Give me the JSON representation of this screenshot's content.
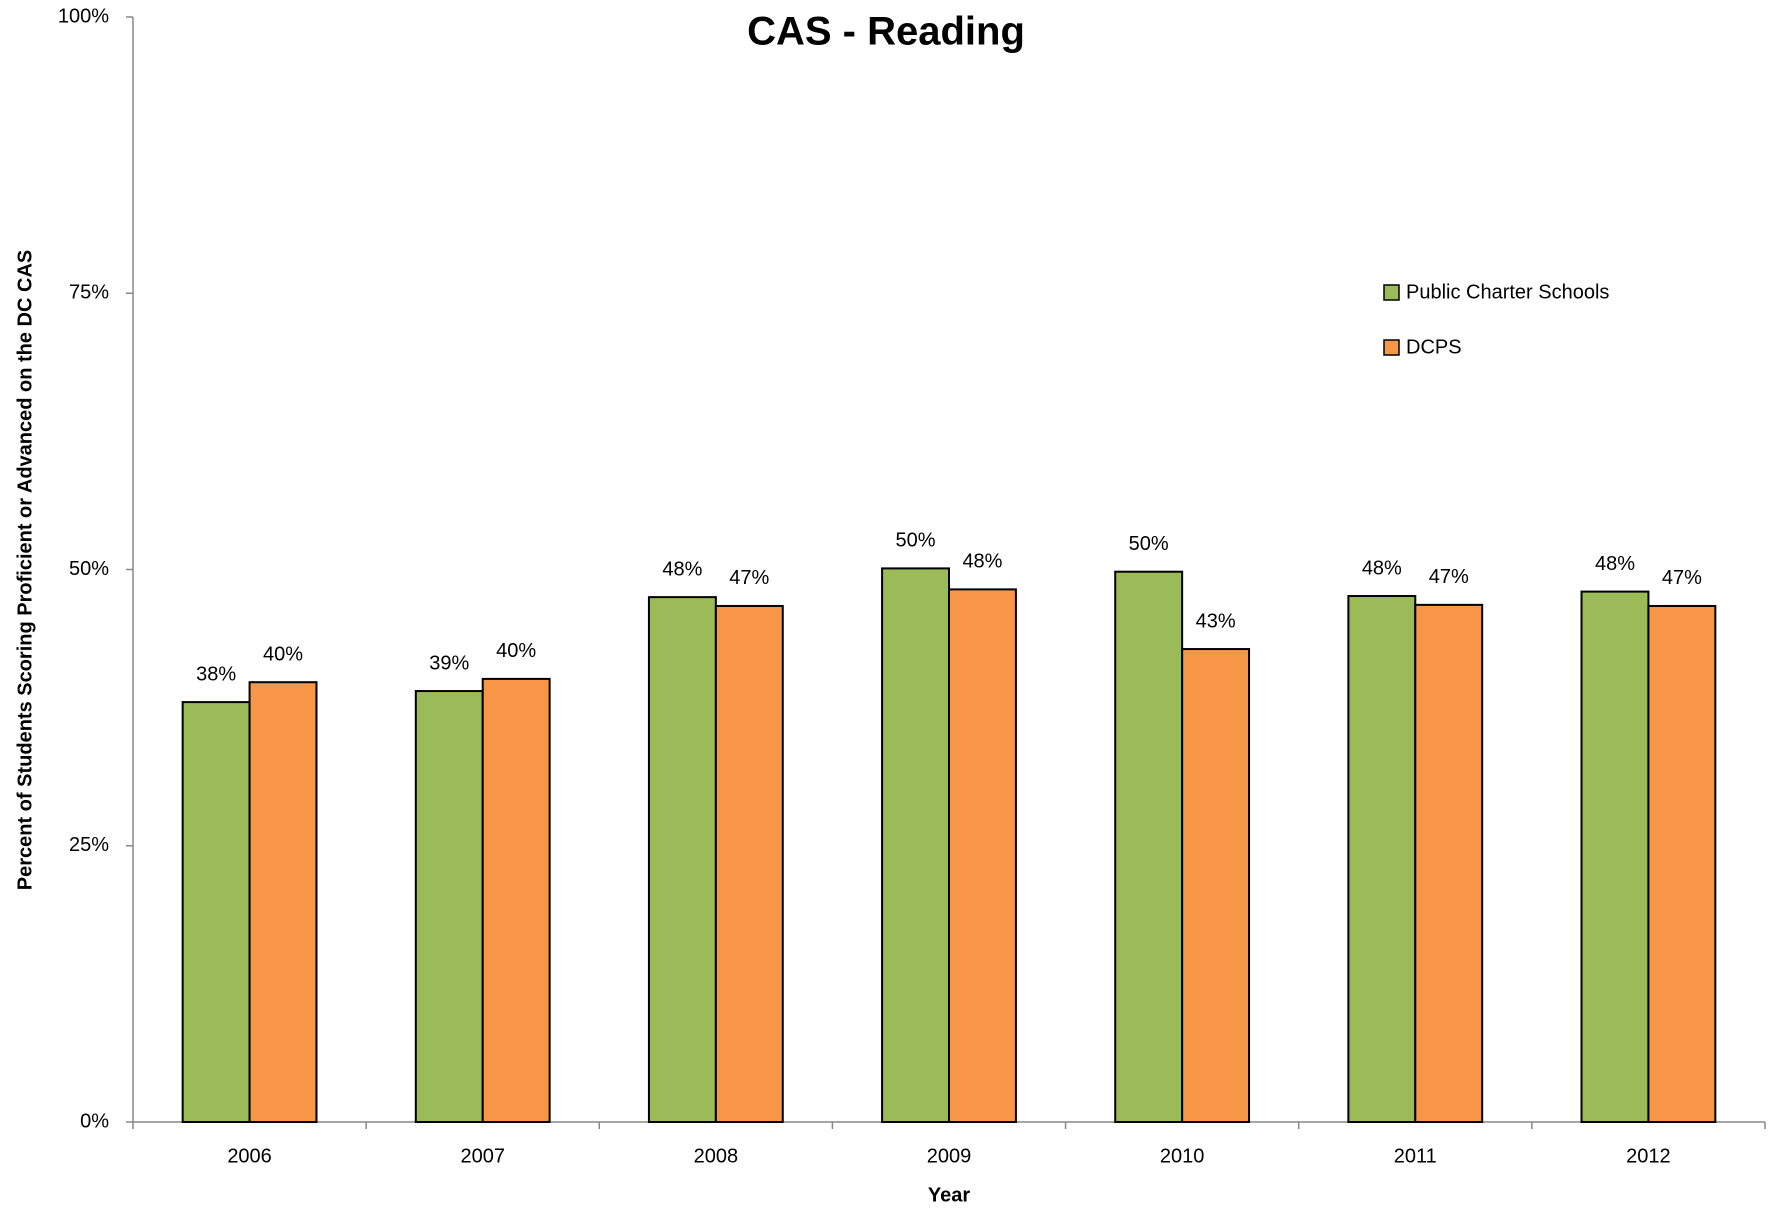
{
  "chart_data": {
    "type": "bar",
    "title": "CAS - Reading",
    "x_label": "Year",
    "y_label": "Percent of Students Scoring Proficient or Advanced on the DC CAS",
    "categories": [
      "2006",
      "2007",
      "2008",
      "2009",
      "2010",
      "2011",
      "2012"
    ],
    "series": [
      {
        "name": "Public Charter Schools",
        "color": "#9bbb59",
        "values": [
          38.0,
          39.0,
          47.5,
          50.1,
          49.8,
          47.6,
          48.0
        ],
        "value_labels": [
          "38%",
          "39%",
          "48%",
          "50%",
          "50%",
          "48%",
          "48%"
        ]
      },
      {
        "name": "DCPS",
        "color": "#f79646",
        "values": [
          39.8,
          40.1,
          46.7,
          48.2,
          42.8,
          46.8,
          46.7
        ],
        "value_labels": [
          "40%",
          "40%",
          "47%",
          "48%",
          "43%",
          "47%",
          "47%"
        ]
      }
    ],
    "ylim": [
      0,
      100
    ],
    "yticks": [
      {
        "value": 0,
        "label": "0%"
      },
      {
        "value": 25,
        "label": "25%"
      },
      {
        "value": 50,
        "label": "50%"
      },
      {
        "value": 75,
        "label": "75%"
      },
      {
        "value": 100,
        "label": "100%"
      }
    ],
    "legend": "upper right"
  }
}
